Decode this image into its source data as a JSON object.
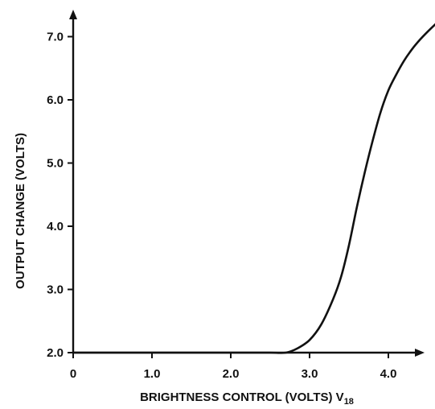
{
  "chart_data": {
    "type": "line",
    "title": "",
    "xlabel": "BRIGHTNESS CONTROL (VOLTS) V",
    "xlabel_subscript": "18",
    "ylabel": "OUTPUT CHANGE (VOLTS)",
    "xlim": [
      0,
      4.6
    ],
    "ylim": [
      2.0,
      7.4
    ],
    "x_ticks": [
      0,
      1.0,
      2.0,
      3.0,
      4.0
    ],
    "x_tick_labels": [
      "0",
      "1.0",
      "2.0",
      "3.0",
      "4.0"
    ],
    "y_ticks": [
      2.0,
      3.0,
      4.0,
      5.0,
      6.0,
      7.0
    ],
    "y_tick_labels": [
      "2.0",
      "3.0",
      "4.0",
      "5.0",
      "6.0",
      "7.0"
    ],
    "grid": false,
    "series": [
      {
        "x": [
          0,
          1.0,
          2.0,
          2.5,
          2.7,
          2.85,
          3.0,
          3.15,
          3.3,
          3.4,
          3.5,
          3.6,
          3.7,
          3.8,
          3.9,
          4.0,
          4.1,
          4.2,
          4.3,
          4.4,
          4.5,
          4.6
        ],
        "y": [
          2.0,
          2.0,
          2.0,
          2.0,
          2.0,
          2.07,
          2.2,
          2.45,
          2.85,
          3.2,
          3.7,
          4.3,
          4.85,
          5.35,
          5.8,
          6.15,
          6.4,
          6.62,
          6.8,
          6.95,
          7.08,
          7.2
        ]
      }
    ]
  }
}
